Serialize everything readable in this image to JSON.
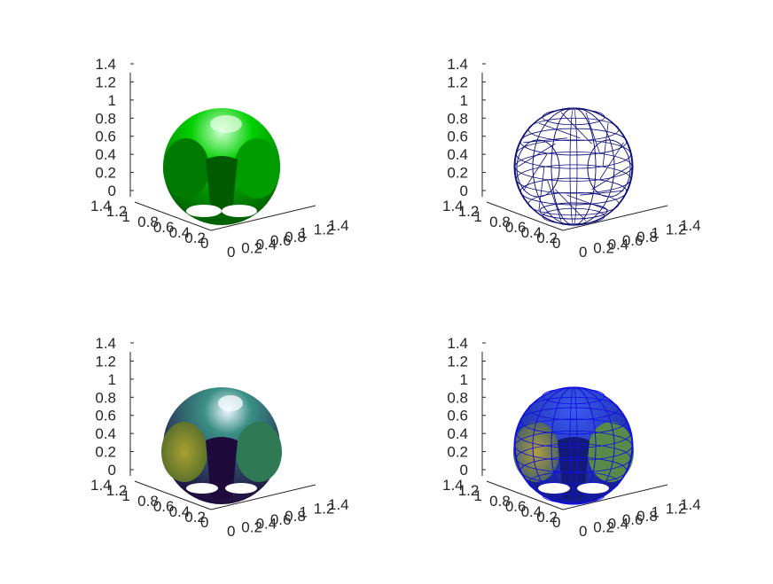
{
  "chart_data": [
    {
      "type": "3d-surface",
      "style": "solid green, lit",
      "colors": {
        "face": "#00c400",
        "dark": "#006100",
        "highlight": "#cfffcf"
      },
      "z_ticks": [
        "0",
        "0.2",
        "0.4",
        "0.6",
        "0.8",
        "1",
        "1.2",
        "1.4"
      ],
      "x_ticks": [
        "0",
        "0.2",
        "0.4",
        "0.6",
        "0.8",
        "1",
        "1.2",
        "1.4"
      ],
      "y_ticks": [
        "0",
        "0.2",
        "0.4",
        "0.6",
        "0.8",
        "1",
        "1.2",
        "1.4"
      ],
      "zlim": [
        0,
        1.4
      ],
      "xlim": [
        0,
        1.4
      ],
      "ylim": [
        0,
        1.4
      ]
    },
    {
      "type": "3d-mesh",
      "style": "wireframe triangles",
      "colors": {
        "edge": "#10107a"
      },
      "z_ticks": [
        "0",
        "0.2",
        "0.4",
        "0.6",
        "0.8",
        "1",
        "1.2",
        "1.4"
      ],
      "x_ticks": [
        "0",
        "0.2",
        "0.4",
        "0.6",
        "0.8",
        "1",
        "1.2",
        "1.4"
      ],
      "y_ticks": [
        "0",
        "0.2",
        "0.4",
        "0.6",
        "0.8",
        "1",
        "1.2",
        "1.4"
      ],
      "zlim": [
        0,
        1.4
      ],
      "xlim": [
        0,
        1.4
      ],
      "ylim": [
        0,
        1.4
      ]
    },
    {
      "type": "3d-surface",
      "style": "interpolated colormap, lit",
      "colors": {
        "face": "#2e7a6a",
        "dark": "#1e0b3c",
        "highlight": "#e8f4ff",
        "warm": "#8a9a2a"
      },
      "z_ticks": [
        "0",
        "0.2",
        "0.4",
        "0.6",
        "0.8",
        "1",
        "1.2",
        "1.4"
      ],
      "x_ticks": [
        "0",
        "0.2",
        "0.4",
        "0.6",
        "0.8",
        "1",
        "1.2",
        "1.4"
      ],
      "y_ticks": [
        "0",
        "0.2",
        "0.4",
        "0.6",
        "0.8",
        "1",
        "1.2",
        "1.4"
      ],
      "zlim": [
        0,
        1.4
      ],
      "xlim": [
        0,
        1.4
      ],
      "ylim": [
        0,
        1.4
      ]
    },
    {
      "type": "3d-surface+mesh",
      "style": "colormap surface with blue edges",
      "colors": {
        "face": "#2a4ad0",
        "edge": "#1010e0",
        "dark": "#141a7a",
        "warm": "#9a8a3a"
      },
      "z_ticks": [
        "0",
        "0.2",
        "0.4",
        "0.6",
        "0.8",
        "1",
        "1.2",
        "1.4"
      ],
      "x_ticks": [
        "0",
        "0.2",
        "0.4",
        "0.6",
        "0.8",
        "1",
        "1.2",
        "1.4"
      ],
      "y_ticks": [
        "0",
        "0.2",
        "0.4",
        "0.6",
        "0.8",
        "1",
        "1.2",
        "1.4"
      ],
      "zlim": [
        0,
        1.4
      ],
      "xlim": [
        0,
        1.4
      ],
      "ylim": [
        0,
        1.4
      ]
    }
  ]
}
